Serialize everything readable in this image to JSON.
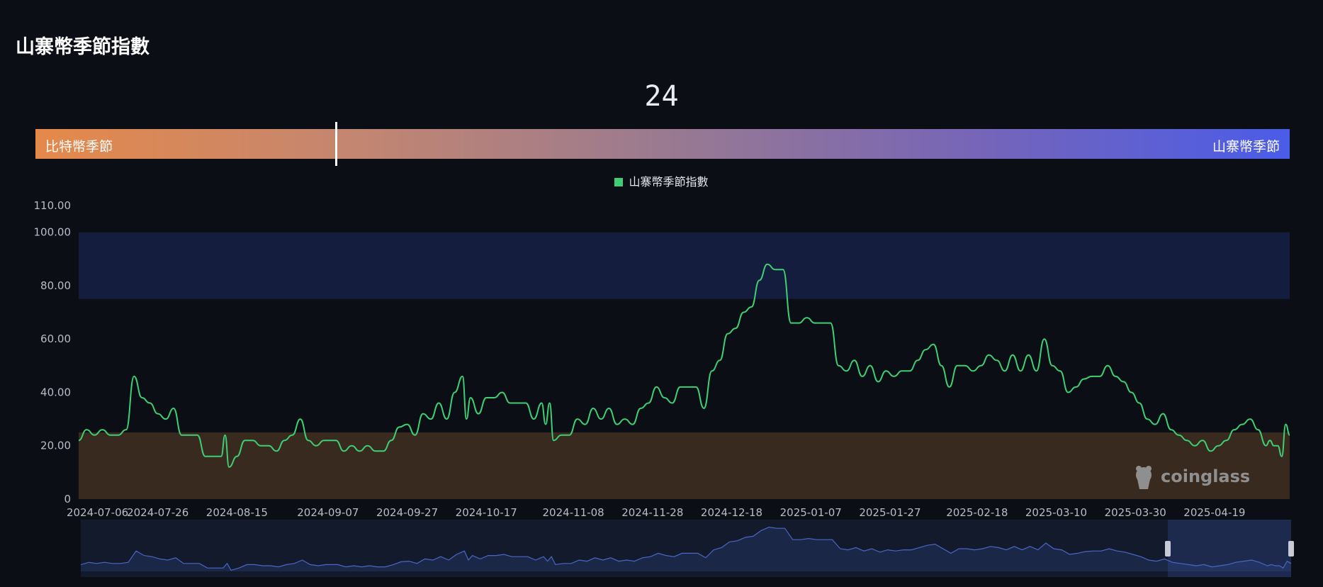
{
  "page": {
    "title": "山寨幣季節指數"
  },
  "indicator": {
    "value": "24",
    "level": 24,
    "left_label": "比特幣季節",
    "right_label": "山寨幣季節"
  },
  "legend": {
    "label": "山寨幣季節指數"
  },
  "watermark": {
    "text": "coinglass"
  },
  "colors": {
    "line": "#3ecf74",
    "altseason_band": "#141d3e",
    "bitcoin_band": "#392a20",
    "navigator_line": "#4a66c6"
  },
  "chart_data": {
    "type": "line",
    "title": "",
    "xlabel": "",
    "ylabel": "",
    "ylim": [
      0,
      110
    ],
    "y_ticks": [
      "0",
      "20.00",
      "40.00",
      "60.00",
      "80.00",
      "100.00",
      "110.00"
    ],
    "x_ticks": [
      "2024-07-06",
      "2024-07-26",
      "2024-08-15",
      "2024-09-07",
      "2024-09-27",
      "2024-10-17",
      "2024-11-08",
      "2024-11-28",
      "2024-12-18",
      "2025-01-07",
      "2025-01-27",
      "2025-02-18",
      "2025-03-10",
      "2025-03-30",
      "2025-04-19"
    ],
    "bands": [
      {
        "from": 75,
        "to": 100
      },
      {
        "from": 0,
        "to": 25
      }
    ],
    "x_start": "2024-07-06",
    "x_end": "2025-05-08",
    "series": [
      {
        "name": "山寨幣季節指數",
        "points": [
          [
            "2024-07-06",
            22
          ],
          [
            "2024-07-08",
            26
          ],
          [
            "2024-07-10",
            24
          ],
          [
            "2024-07-12",
            26
          ],
          [
            "2024-07-14",
            24
          ],
          [
            "2024-07-16",
            24
          ],
          [
            "2024-07-18",
            26
          ],
          [
            "2024-07-20",
            46
          ],
          [
            "2024-07-22",
            38
          ],
          [
            "2024-07-24",
            36
          ],
          [
            "2024-07-26",
            32
          ],
          [
            "2024-07-28",
            30
          ],
          [
            "2024-07-30",
            34
          ],
          [
            "2024-08-01",
            24
          ],
          [
            "2024-08-03",
            24
          ],
          [
            "2024-08-05",
            24
          ],
          [
            "2024-08-07",
            16
          ],
          [
            "2024-08-09",
            16
          ],
          [
            "2024-08-11",
            16
          ],
          [
            "2024-08-12",
            24
          ],
          [
            "2024-08-13",
            12
          ],
          [
            "2024-08-15",
            16
          ],
          [
            "2024-08-17",
            22
          ],
          [
            "2024-08-19",
            22
          ],
          [
            "2024-08-21",
            20
          ],
          [
            "2024-08-23",
            20
          ],
          [
            "2024-08-25",
            18
          ],
          [
            "2024-08-27",
            22
          ],
          [
            "2024-08-29",
            24
          ],
          [
            "2024-08-31",
            30
          ],
          [
            "2024-09-02",
            22
          ],
          [
            "2024-09-04",
            20
          ],
          [
            "2024-09-06",
            22
          ],
          [
            "2024-09-09",
            22
          ],
          [
            "2024-09-11",
            18
          ],
          [
            "2024-09-13",
            20
          ],
          [
            "2024-09-15",
            18
          ],
          [
            "2024-09-17",
            20
          ],
          [
            "2024-09-19",
            18
          ],
          [
            "2024-09-21",
            18
          ],
          [
            "2024-09-23",
            22
          ],
          [
            "2024-09-25",
            27
          ],
          [
            "2024-09-27",
            28
          ],
          [
            "2024-09-29",
            24
          ],
          [
            "2024-10-01",
            32
          ],
          [
            "2024-10-03",
            30
          ],
          [
            "2024-10-05",
            36
          ],
          [
            "2024-10-07",
            30
          ],
          [
            "2024-10-09",
            40
          ],
          [
            "2024-10-11",
            46
          ],
          [
            "2024-10-12",
            30
          ],
          [
            "2024-10-13",
            38
          ],
          [
            "2024-10-15",
            32
          ],
          [
            "2024-10-17",
            38
          ],
          [
            "2024-10-19",
            38
          ],
          [
            "2024-10-21",
            40
          ],
          [
            "2024-10-23",
            36
          ],
          [
            "2024-10-25",
            36
          ],
          [
            "2024-10-27",
            36
          ],
          [
            "2024-10-29",
            30
          ],
          [
            "2024-10-31",
            36
          ],
          [
            "2024-11-01",
            28
          ],
          [
            "2024-11-02",
            36
          ],
          [
            "2024-11-03",
            22
          ],
          [
            "2024-11-05",
            24
          ],
          [
            "2024-11-07",
            24
          ],
          [
            "2024-11-09",
            30
          ],
          [
            "2024-11-11",
            28
          ],
          [
            "2024-11-13",
            34
          ],
          [
            "2024-11-15",
            30
          ],
          [
            "2024-11-17",
            34
          ],
          [
            "2024-11-19",
            28
          ],
          [
            "2024-11-21",
            30
          ],
          [
            "2024-11-23",
            28
          ],
          [
            "2024-11-25",
            34
          ],
          [
            "2024-11-27",
            36
          ],
          [
            "2024-11-29",
            42
          ],
          [
            "2024-12-01",
            38
          ],
          [
            "2024-12-03",
            36
          ],
          [
            "2024-12-05",
            42
          ],
          [
            "2024-12-07",
            42
          ],
          [
            "2024-12-09",
            42
          ],
          [
            "2024-12-11",
            34
          ],
          [
            "2024-12-13",
            48
          ],
          [
            "2024-12-15",
            52
          ],
          [
            "2024-12-17",
            62
          ],
          [
            "2024-12-19",
            64
          ],
          [
            "2024-12-21",
            70
          ],
          [
            "2024-12-23",
            72
          ],
          [
            "2024-12-25",
            82
          ],
          [
            "2024-12-27",
            88
          ],
          [
            "2024-12-29",
            86
          ],
          [
            "2024-12-31",
            86
          ],
          [
            "2025-01-02",
            66
          ],
          [
            "2025-01-04",
            66
          ],
          [
            "2025-01-06",
            68
          ],
          [
            "2025-01-08",
            66
          ],
          [
            "2025-01-10",
            66
          ],
          [
            "2025-01-12",
            66
          ],
          [
            "2025-01-14",
            50
          ],
          [
            "2025-01-16",
            48
          ],
          [
            "2025-01-18",
            52
          ],
          [
            "2025-01-20",
            46
          ],
          [
            "2025-01-22",
            50
          ],
          [
            "2025-01-24",
            44
          ],
          [
            "2025-01-26",
            48
          ],
          [
            "2025-01-28",
            46
          ],
          [
            "2025-01-30",
            48
          ],
          [
            "2025-02-01",
            48
          ],
          [
            "2025-02-03",
            52
          ],
          [
            "2025-02-05",
            56
          ],
          [
            "2025-02-07",
            58
          ],
          [
            "2025-02-09",
            50
          ],
          [
            "2025-02-11",
            42
          ],
          [
            "2025-02-13",
            50
          ],
          [
            "2025-02-15",
            50
          ],
          [
            "2025-02-17",
            48
          ],
          [
            "2025-02-19",
            50
          ],
          [
            "2025-02-21",
            54
          ],
          [
            "2025-02-23",
            52
          ],
          [
            "2025-02-25",
            48
          ],
          [
            "2025-02-27",
            54
          ],
          [
            "2025-03-01",
            48
          ],
          [
            "2025-03-03",
            54
          ],
          [
            "2025-03-05",
            48
          ],
          [
            "2025-03-07",
            60
          ],
          [
            "2025-03-09",
            50
          ],
          [
            "2025-03-11",
            48
          ],
          [
            "2025-03-13",
            40
          ],
          [
            "2025-03-15",
            42
          ],
          [
            "2025-03-17",
            45
          ],
          [
            "2025-03-19",
            46
          ],
          [
            "2025-03-21",
            46
          ],
          [
            "2025-03-23",
            50
          ],
          [
            "2025-03-25",
            46
          ],
          [
            "2025-03-27",
            44
          ],
          [
            "2025-03-29",
            40
          ],
          [
            "2025-03-31",
            36
          ],
          [
            "2025-04-02",
            30
          ],
          [
            "2025-04-04",
            28
          ],
          [
            "2025-04-06",
            32
          ],
          [
            "2025-04-08",
            26
          ],
          [
            "2025-04-10",
            24
          ],
          [
            "2025-04-12",
            22
          ],
          [
            "2025-04-14",
            20
          ],
          [
            "2025-04-16",
            22
          ],
          [
            "2025-04-18",
            18
          ],
          [
            "2025-04-20",
            20
          ],
          [
            "2025-04-22",
            22
          ],
          [
            "2025-04-24",
            26
          ],
          [
            "2025-04-26",
            28
          ],
          [
            "2025-04-28",
            30
          ],
          [
            "2025-04-30",
            26
          ],
          [
            "2025-05-02",
            20
          ],
          [
            "2025-05-03",
            22
          ],
          [
            "2025-05-04",
            20
          ],
          [
            "2025-05-05",
            20
          ],
          [
            "2025-05-06",
            16
          ],
          [
            "2025-05-07",
            28
          ],
          [
            "2025-05-08",
            24
          ]
        ]
      }
    ]
  }
}
